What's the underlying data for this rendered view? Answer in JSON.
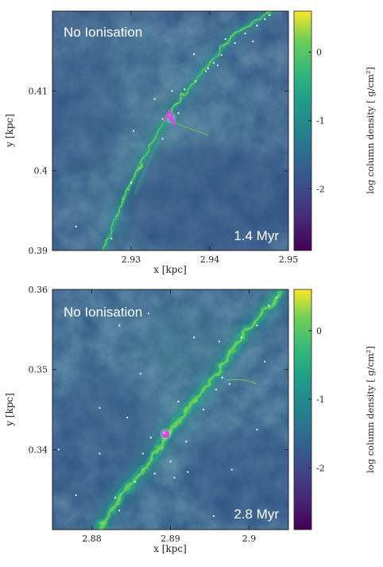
{
  "chart_data": [
    {
      "type": "heatmap",
      "title": "No Ionisation",
      "annotation": "1.4 Myr",
      "xlabel": "x [kpc]",
      "ylabel": "y [kpc]",
      "xlim": [
        2.92,
        2.95
      ],
      "ylim": [
        0.39,
        0.42
      ],
      "xticks": [
        2.93,
        2.94,
        2.95
      ],
      "xtick_labels": [
        "2.93",
        "2.94",
        "2.95"
      ],
      "yticks": [
        0.39,
        0.4,
        0.41
      ],
      "ytick_labels": [
        "0.39",
        "0.4",
        "0.41"
      ],
      "colorbar": {
        "label": "log column density [ g/cm²]",
        "range": [
          -2.9,
          0.6
        ],
        "ticks": [
          0,
          -1,
          -2
        ],
        "tick_labels": [
          "0",
          "-1",
          "-2"
        ],
        "colormap": "viridis"
      },
      "filament": [
        [
          2.9265,
          0.39
        ],
        [
          2.9295,
          0.3975
        ],
        [
          2.9332,
          0.4045
        ],
        [
          2.9348,
          0.407
        ],
        [
          2.9385,
          0.4118
        ],
        [
          2.9432,
          0.4172
        ],
        [
          2.948,
          0.42
        ]
      ],
      "sink_cluster": {
        "x": 2.935,
        "y": 0.4066
      },
      "stars": [
        [
          2.9275,
          0.3915
        ],
        [
          2.93,
          0.3985
        ],
        [
          2.9352,
          0.41
        ],
        [
          2.9368,
          0.4102
        ],
        [
          2.9382,
          0.4112
        ],
        [
          2.9398,
          0.4128
        ],
        [
          2.9405,
          0.4135
        ],
        [
          2.9415,
          0.4145
        ],
        [
          2.9432,
          0.416
        ],
        [
          2.9445,
          0.4172
        ],
        [
          2.946,
          0.4182
        ],
        [
          2.947,
          0.419
        ],
        [
          2.9476,
          0.4195
        ],
        [
          2.934,
          0.4065
        ],
        [
          2.936,
          0.4072
        ],
        [
          2.933,
          0.409
        ],
        [
          2.9395,
          0.4125
        ],
        [
          2.941,
          0.4132
        ],
        [
          2.934,
          0.404
        ],
        [
          2.9303,
          0.405
        ],
        [
          2.923,
          0.393
        ],
        [
          2.938,
          0.4146
        ],
        [
          2.942,
          0.4165
        ],
        [
          2.9455,
          0.4162
        ]
      ]
    },
    {
      "type": "heatmap",
      "title": "No Ionisation",
      "annotation": "2.8 Myr",
      "xlabel": "x [kpc]",
      "ylabel": "y [kpc]",
      "xlim": [
        2.875,
        2.905
      ],
      "ylim": [
        0.33,
        0.36
      ],
      "xticks": [
        2.88,
        2.89,
        2.9
      ],
      "xtick_labels": [
        "2.88",
        "2.89",
        "2.9"
      ],
      "yticks": [
        0.34,
        0.35,
        0.36
      ],
      "ytick_labels": [
        "0.34",
        "0.35",
        "0.36"
      ],
      "colorbar": {
        "label": "log column density [ g/cm²]",
        "range": [
          -2.9,
          0.6
        ],
        "ticks": [
          0,
          -1,
          -2
        ],
        "tick_labels": [
          "0",
          "-1",
          "-2"
        ],
        "colormap": "viridis"
      },
      "filament": [
        [
          2.881,
          0.33
        ],
        [
          2.8838,
          0.3345
        ],
        [
          2.8875,
          0.3385
        ],
        [
          2.8895,
          0.3418
        ],
        [
          2.8925,
          0.3455
        ],
        [
          2.8955,
          0.349
        ],
        [
          2.899,
          0.354
        ],
        [
          2.904,
          0.3595
        ]
      ],
      "sink_cluster": {
        "x": 2.8894,
        "y": 0.3419
      },
      "stars": [
        [
          2.883,
          0.334
        ],
        [
          2.8855,
          0.336
        ],
        [
          2.8865,
          0.3395
        ],
        [
          2.888,
          0.337
        ],
        [
          2.89,
          0.3385
        ],
        [
          2.8905,
          0.3365
        ],
        [
          2.8922,
          0.3372
        ],
        [
          2.892,
          0.341
        ],
        [
          2.8875,
          0.3415
        ],
        [
          2.891,
          0.346
        ],
        [
          2.8942,
          0.345
        ],
        [
          2.8958,
          0.3475
        ],
        [
          2.8966,
          0.349
        ],
        [
          2.8975,
          0.3482
        ],
        [
          2.899,
          0.354
        ],
        [
          2.901,
          0.3555
        ],
        [
          2.9025,
          0.358
        ],
        [
          2.9035,
          0.359
        ],
        [
          2.881,
          0.3395
        ],
        [
          2.8845,
          0.344
        ],
        [
          2.881,
          0.3452
        ],
        [
          2.8862,
          0.3495
        ],
        [
          2.8835,
          0.3555
        ],
        [
          2.8872,
          0.357
        ],
        [
          2.893,
          0.354
        ],
        [
          2.8962,
          0.3535
        ],
        [
          2.902,
          0.351
        ],
        [
          2.8978,
          0.3375
        ],
        [
          2.8758,
          0.34
        ],
        [
          2.878,
          0.3343
        ],
        [
          2.8835,
          0.3324
        ],
        [
          2.8955,
          0.3317
        ],
        [
          2.901,
          0.3425
        ]
      ]
    }
  ]
}
